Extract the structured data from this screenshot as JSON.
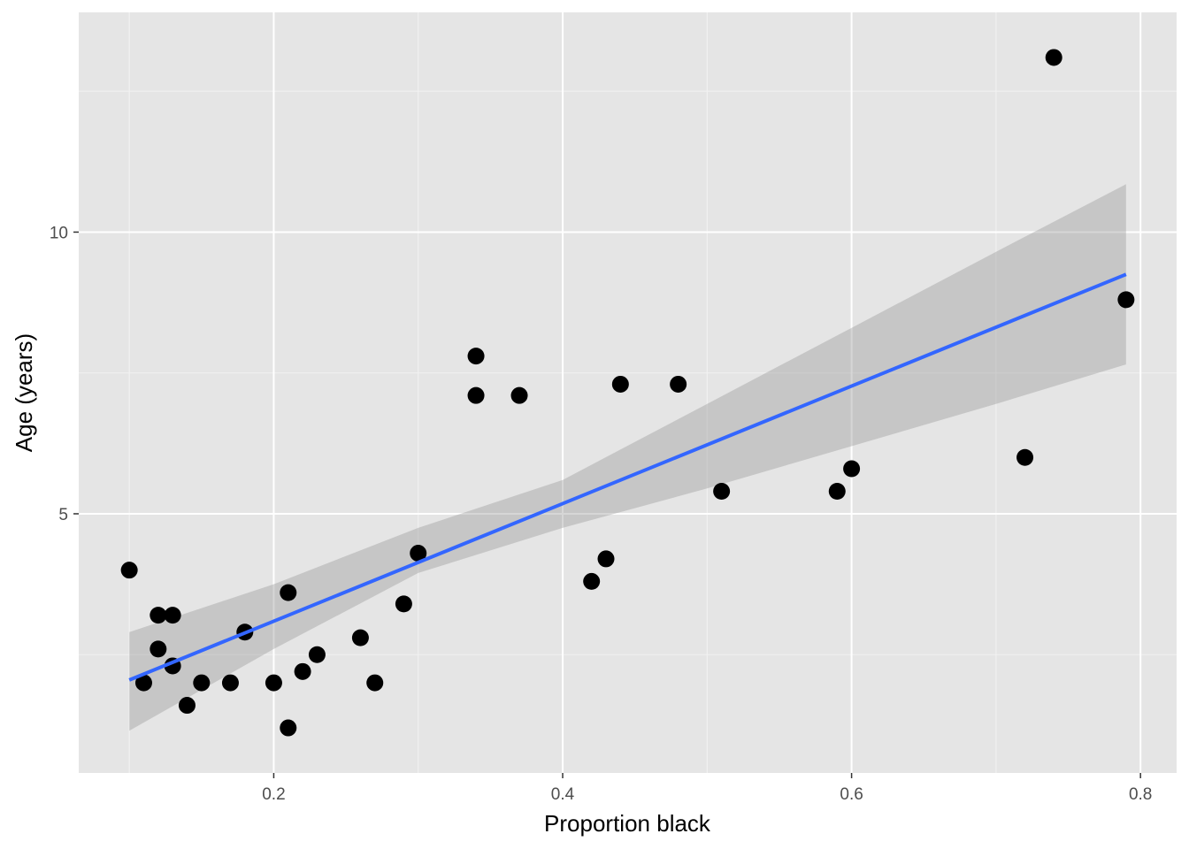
{
  "chart_data": {
    "type": "scatter",
    "xlabel": "Proportion black",
    "ylabel": "Age (years)",
    "xlim": [
      0.065,
      0.825
    ],
    "ylim": [
      0.4,
      13.9
    ],
    "x_ticks": [
      0.2,
      0.4,
      0.6,
      0.8
    ],
    "x_tick_labels": [
      "0.2",
      "0.4",
      "0.6",
      "0.8"
    ],
    "y_ticks": [
      5,
      10
    ],
    "y_tick_labels": [
      "5",
      "10"
    ],
    "grid": true,
    "points": [
      {
        "x": 0.1,
        "y": 4.0
      },
      {
        "x": 0.11,
        "y": 2.0
      },
      {
        "x": 0.12,
        "y": 3.2
      },
      {
        "x": 0.12,
        "y": 2.6
      },
      {
        "x": 0.13,
        "y": 3.2
      },
      {
        "x": 0.13,
        "y": 2.3
      },
      {
        "x": 0.14,
        "y": 1.6
      },
      {
        "x": 0.15,
        "y": 2.0
      },
      {
        "x": 0.17,
        "y": 2.0
      },
      {
        "x": 0.18,
        "y": 2.9
      },
      {
        "x": 0.2,
        "y": 2.0
      },
      {
        "x": 0.21,
        "y": 3.6
      },
      {
        "x": 0.21,
        "y": 1.2
      },
      {
        "x": 0.22,
        "y": 2.2
      },
      {
        "x": 0.23,
        "y": 2.5
      },
      {
        "x": 0.26,
        "y": 2.8
      },
      {
        "x": 0.27,
        "y": 2.0
      },
      {
        "x": 0.29,
        "y": 3.4
      },
      {
        "x": 0.3,
        "y": 4.3
      },
      {
        "x": 0.34,
        "y": 7.8
      },
      {
        "x": 0.34,
        "y": 7.1
      },
      {
        "x": 0.37,
        "y": 7.1
      },
      {
        "x": 0.42,
        "y": 3.8
      },
      {
        "x": 0.43,
        "y": 4.2
      },
      {
        "x": 0.44,
        "y": 7.3
      },
      {
        "x": 0.48,
        "y": 7.3
      },
      {
        "x": 0.51,
        "y": 5.4
      },
      {
        "x": 0.59,
        "y": 5.4
      },
      {
        "x": 0.6,
        "y": 5.8
      },
      {
        "x": 0.72,
        "y": 6.0
      },
      {
        "x": 0.74,
        "y": 13.1
      },
      {
        "x": 0.79,
        "y": 8.8
      }
    ],
    "fit": {
      "method": "linear",
      "color": "#3366ff",
      "band_color": "#999999",
      "points": [
        {
          "x": 0.1,
          "y": 2.05,
          "lo": 1.15,
          "hi": 2.9
        },
        {
          "x": 0.2,
          "y": 3.15,
          "lo": 2.6,
          "hi": 3.75
        },
        {
          "x": 0.3,
          "y": 4.35,
          "lo": 3.95,
          "hi": 4.75
        },
        {
          "x": 0.4,
          "y": 5.15,
          "lo": 4.75,
          "hi": 5.6
        },
        {
          "x": 0.5,
          "y": 6.2,
          "lo": 5.45,
          "hi": 6.95
        },
        {
          "x": 0.6,
          "y": 7.25,
          "lo": 6.2,
          "hi": 8.3
        },
        {
          "x": 0.7,
          "y": 8.3,
          "lo": 6.95,
          "hi": 9.65
        },
        {
          "x": 0.79,
          "y": 9.25,
          "lo": 7.65,
          "hi": 10.85
        }
      ]
    }
  }
}
